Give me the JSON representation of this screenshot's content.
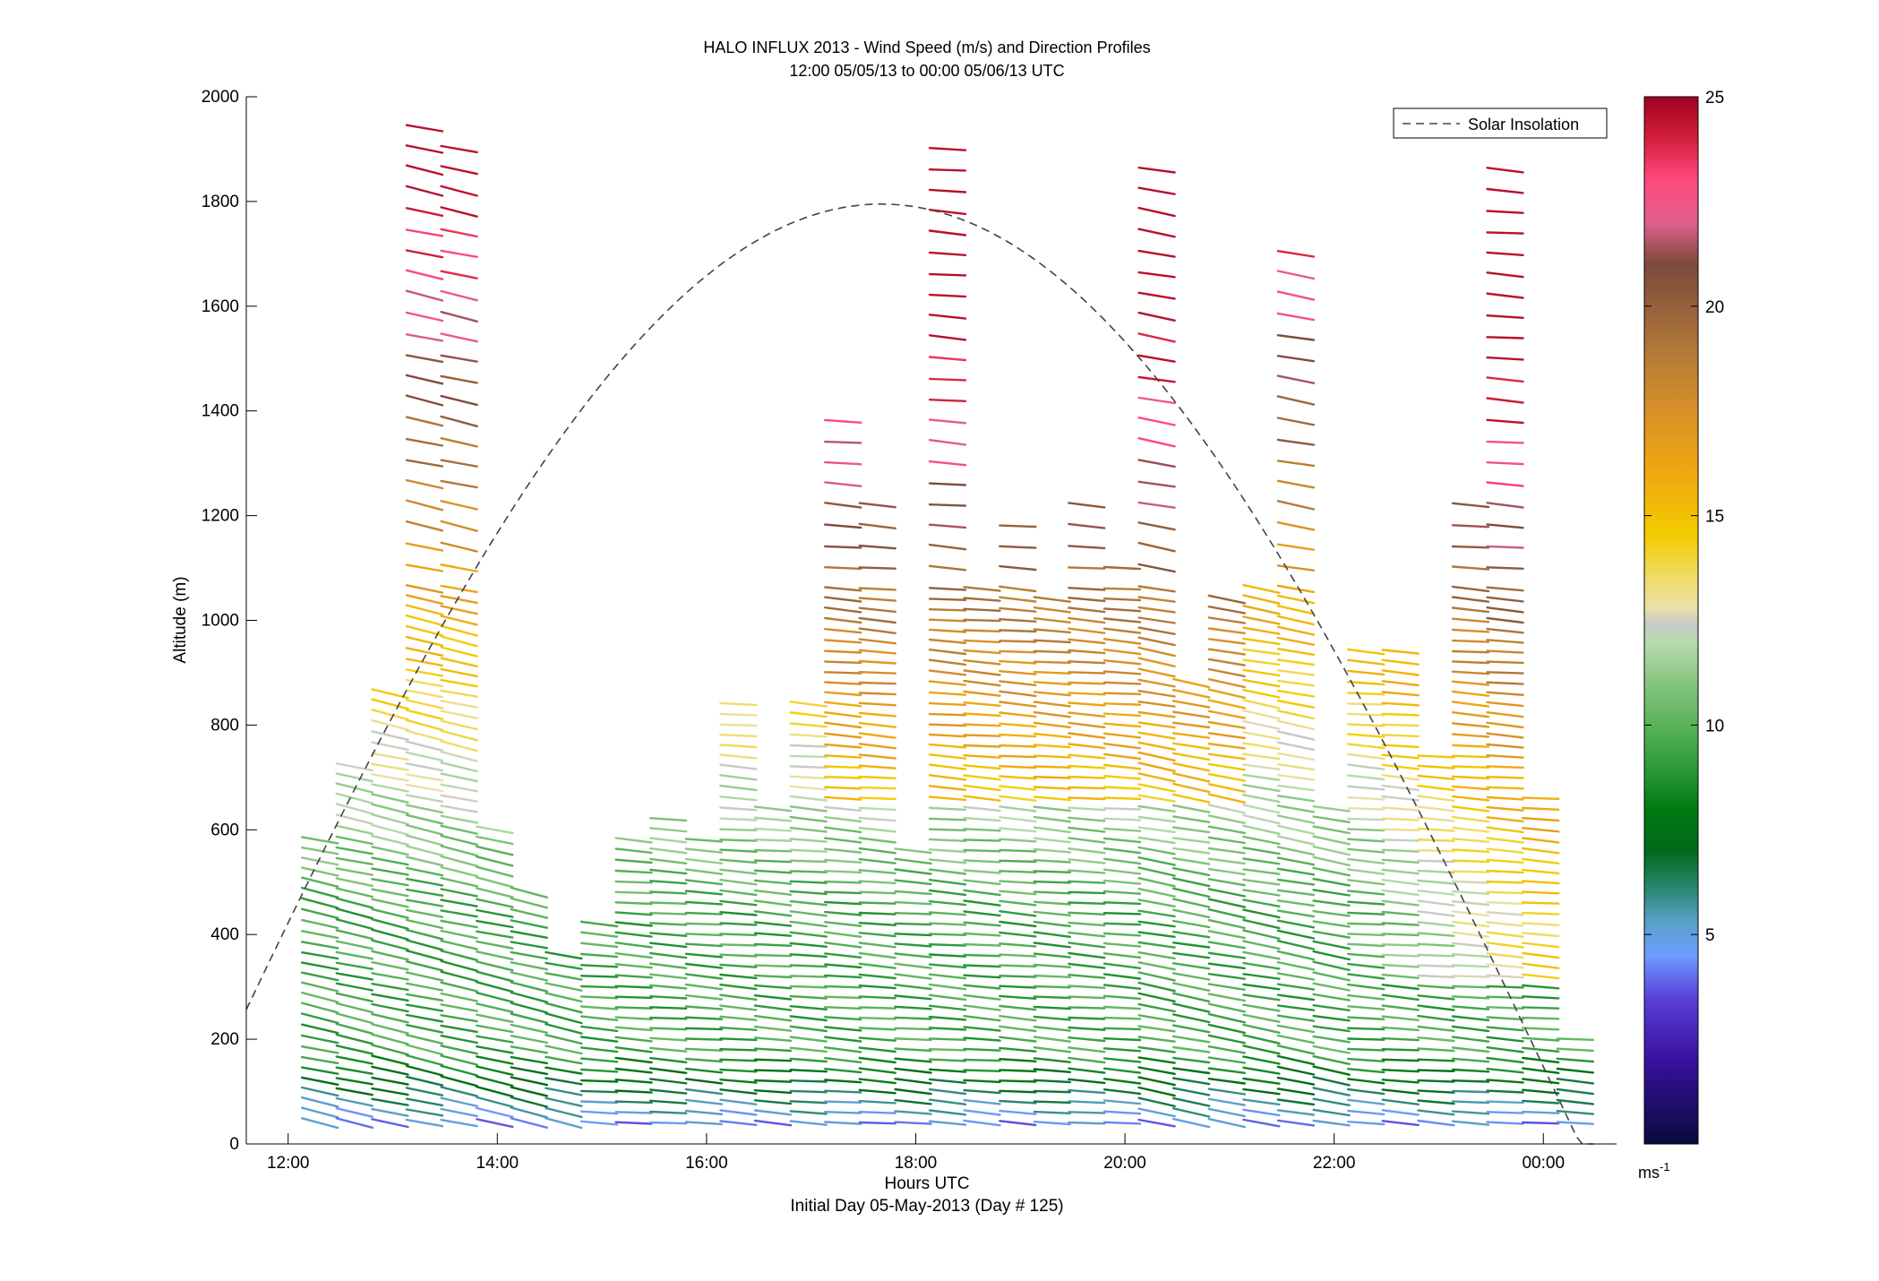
{
  "chart_data": {
    "type": "scatter",
    "title": "HALO INFLUX 2013 - Wind Speed (m/s) and Direction Profiles",
    "subtitle": "12:00 05/05/13 to 00:00 05/06/13  UTC",
    "xlabel": "Hours UTC",
    "xlabel2": "Initial Day 05-May-2013 (Day # 125)",
    "ylabel": "Altitude (m)",
    "xlim": [
      11.6,
      24.7
    ],
    "ylim": [
      0,
      2000
    ],
    "x_ticks": [
      {
        "value": 12,
        "label": "12:00"
      },
      {
        "value": 14,
        "label": "14:00"
      },
      {
        "value": 16,
        "label": "16:00"
      },
      {
        "value": 18,
        "label": "18:00"
      },
      {
        "value": 20,
        "label": "20:00"
      },
      {
        "value": 22,
        "label": "22:00"
      },
      {
        "value": 24,
        "label": "00:00"
      }
    ],
    "y_ticks": [
      {
        "value": 0,
        "label": "0"
      },
      {
        "value": 200,
        "label": "200"
      },
      {
        "value": 400,
        "label": "400"
      },
      {
        "value": 600,
        "label": "600"
      },
      {
        "value": 800,
        "label": "800"
      },
      {
        "value": 1000,
        "label": "1000"
      },
      {
        "value": 1200,
        "label": "1200"
      },
      {
        "value": 1400,
        "label": "1400"
      },
      {
        "value": 1600,
        "label": "1600"
      },
      {
        "value": 1800,
        "label": "1800"
      },
      {
        "value": 2000,
        "label": "2000"
      }
    ],
    "legend": {
      "position": "top-right",
      "entries": [
        "Solar Insolation"
      ]
    },
    "solar_insolation": {
      "peak_time": 17.67,
      "peak_altitude": 1795,
      "sunrise": 11.33,
      "sunset": 24.35
    },
    "colorbar": {
      "min": 0,
      "max": 25,
      "ticks": [
        {
          "value": 5,
          "label": "5"
        },
        {
          "value": 10,
          "label": "10"
        },
        {
          "value": 15,
          "label": "15"
        },
        {
          "value": 20,
          "label": "20"
        },
        {
          "value": 25,
          "label": "25"
        }
      ],
      "unit_label": "ms",
      "unit_exponent": "-1",
      "stops": [
        {
          "v": 0,
          "c": "#0a0a3c"
        },
        {
          "v": 2,
          "c": "#3a109e"
        },
        {
          "v": 3.5,
          "c": "#5a40d8"
        },
        {
          "v": 4.5,
          "c": "#6e9cff"
        },
        {
          "v": 5.3,
          "c": "#5aa0c8"
        },
        {
          "v": 6,
          "c": "#2f8a7a"
        },
        {
          "v": 7,
          "c": "#006a1a"
        },
        {
          "v": 8,
          "c": "#007a10"
        },
        {
          "v": 9,
          "c": "#2e9a3c"
        },
        {
          "v": 10,
          "c": "#5ab35a"
        },
        {
          "v": 11,
          "c": "#86c47e"
        },
        {
          "v": 12,
          "c": "#b8dcae"
        },
        {
          "v": 12.4,
          "c": "#c8c8c8"
        },
        {
          "v": 12.8,
          "c": "#e8e0a8"
        },
        {
          "v": 13.5,
          "c": "#f0dc6a"
        },
        {
          "v": 14.5,
          "c": "#f2cc00"
        },
        {
          "v": 16,
          "c": "#f0aa10"
        },
        {
          "v": 17.5,
          "c": "#d89028"
        },
        {
          "v": 19,
          "c": "#b07838"
        },
        {
          "v": 20,
          "c": "#94603c"
        },
        {
          "v": 21,
          "c": "#7c4a3e"
        },
        {
          "v": 22,
          "c": "#e0608a"
        },
        {
          "v": 23,
          "c": "#ff4a7e"
        },
        {
          "v": 24,
          "c": "#d2203c"
        },
        {
          "v": 25,
          "c": "#a00020"
        }
      ]
    },
    "profile_times": [
      12.15,
      12.48,
      12.82,
      13.15,
      13.48,
      13.82,
      14.15,
      14.48,
      14.82,
      15.15,
      15.48,
      15.82,
      16.15,
      16.48,
      16.82,
      17.15,
      17.48,
      17.82,
      18.15,
      18.48,
      18.82,
      19.15,
      19.48,
      19.82,
      20.15,
      20.48,
      20.82,
      21.15,
      21.48,
      21.82,
      22.15,
      22.48,
      22.82,
      23.15,
      23.48,
      23.82,
      24.15
    ],
    "gate_altitudes": [
      40,
      60,
      80,
      100,
      120,
      140,
      160,
      180,
      200,
      220,
      240,
      260,
      280,
      300,
      320,
      340,
      360,
      380,
      400,
      420,
      440,
      460,
      480,
      500,
      520,
      540,
      560,
      580,
      600,
      620,
      640,
      660,
      680,
      700,
      720,
      740,
      760,
      780,
      800,
      820,
      840,
      860,
      880,
      900,
      920,
      940,
      960,
      980,
      1000,
      1020,
      1040
    ],
    "profile_tops": [
      590,
      730,
      870,
      1960,
      1910,
      600,
      480,
      360,
      430,
      590,
      630,
      580,
      840,
      640,
      840,
      1400,
      1240,
      560,
      1920,
      1060,
      1180,
      1050,
      1250,
      1130,
      1870,
      890,
      1050,
      1060,
      1700,
      650,
      950,
      940,
      740,
      1240,
      1870,
      660,
      200
    ],
    "note_speeds": "wind speed (m/s) per barb encoded by color; values estimated from color bar"
  }
}
